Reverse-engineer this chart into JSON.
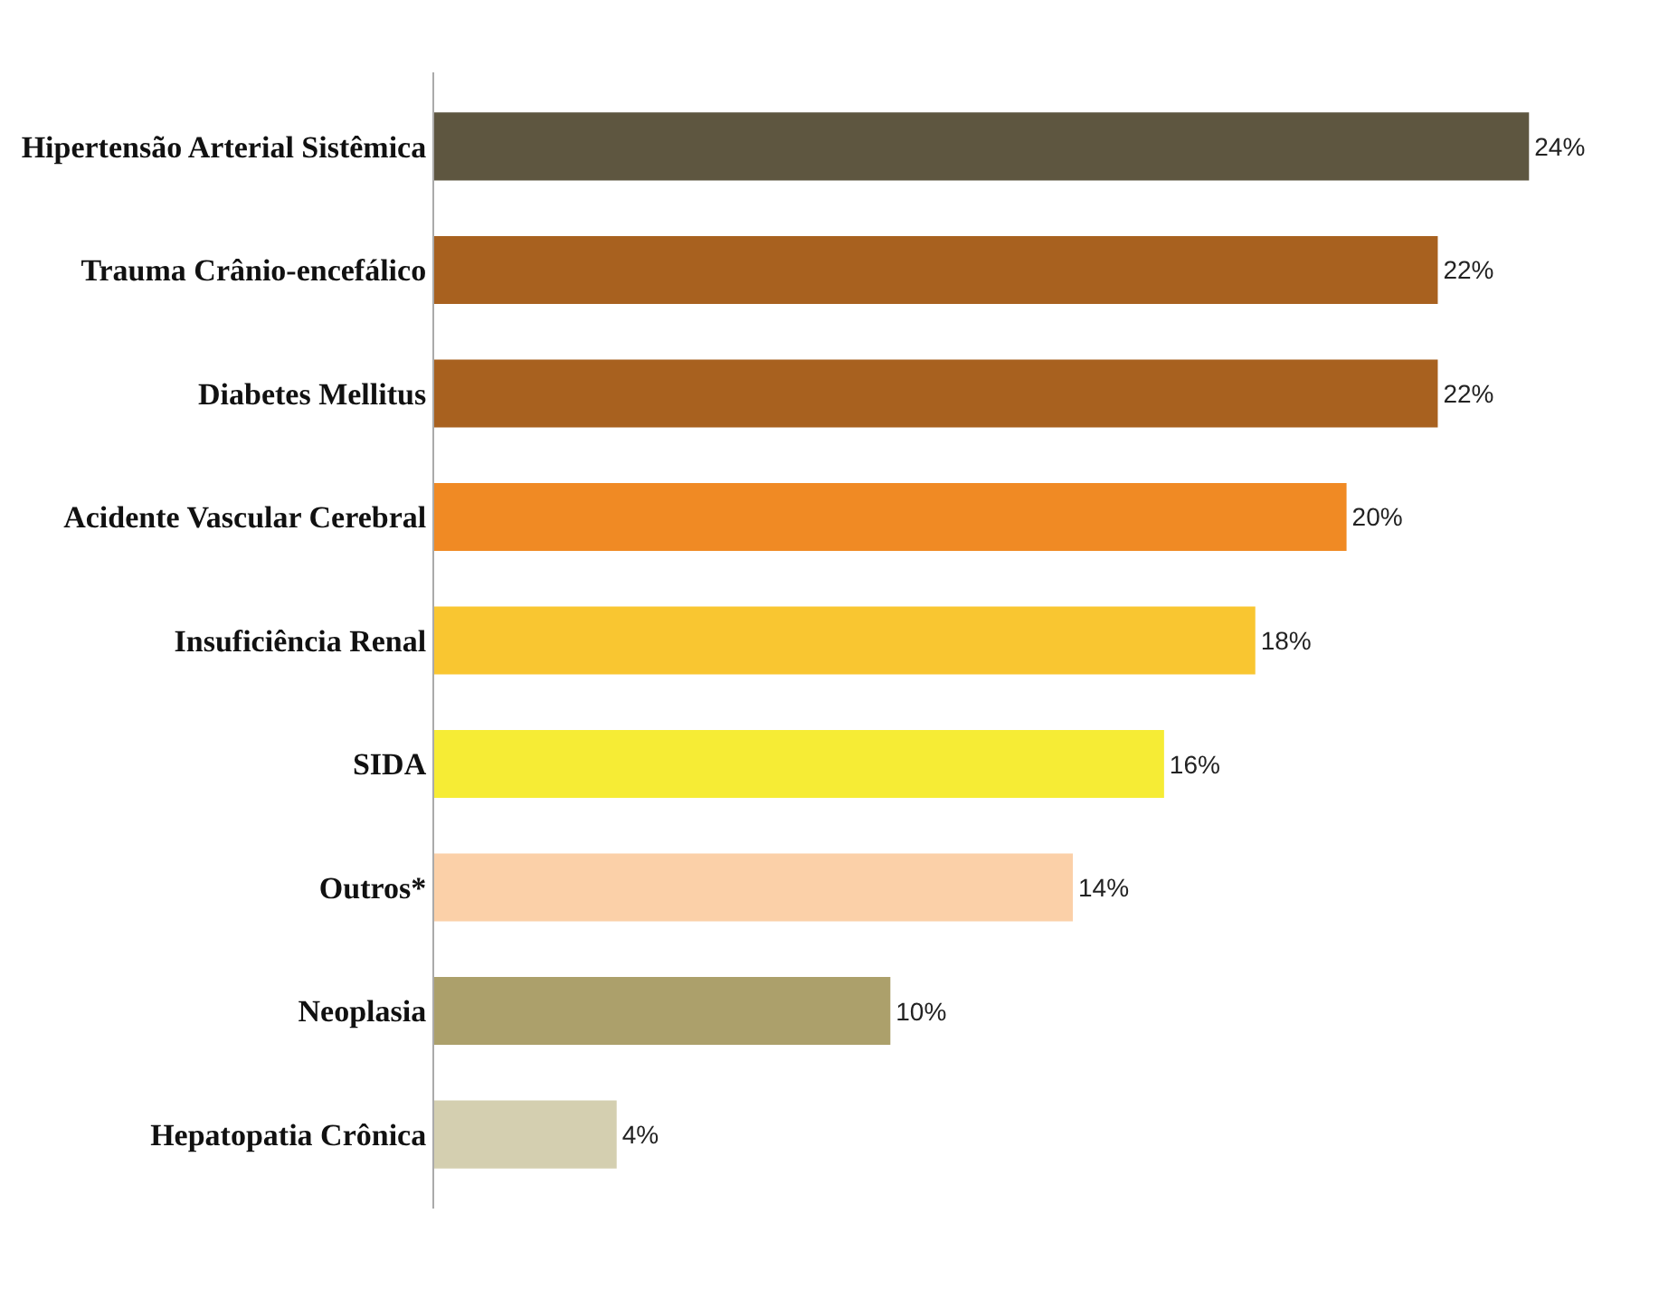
{
  "chart_data": {
    "type": "bar",
    "orientation": "horizontal",
    "categories": [
      "Hipertensão Arterial Sistêmica",
      "Trauma Crânio-encefálico",
      "Diabetes Mellitus",
      "Acidente Vascular Cerebral",
      "Insuficiência Renal",
      "SIDA",
      "Outros*",
      "Neoplasia",
      "Hepatopatia Crônica"
    ],
    "values": [
      24,
      22,
      22,
      20,
      18,
      16,
      14,
      10,
      4
    ],
    "value_labels": [
      "24%",
      "22%",
      "22%",
      "20%",
      "18%",
      "16%",
      "14%",
      "10%",
      "4%"
    ],
    "colors": [
      "#5e5640",
      "#a8611f",
      "#a8611f",
      "#f08a24",
      "#f9c631",
      "#f6ec35",
      "#fbd0a8",
      "#aca06b",
      "#d4cfb0"
    ],
    "tick_labels": "y"
  }
}
